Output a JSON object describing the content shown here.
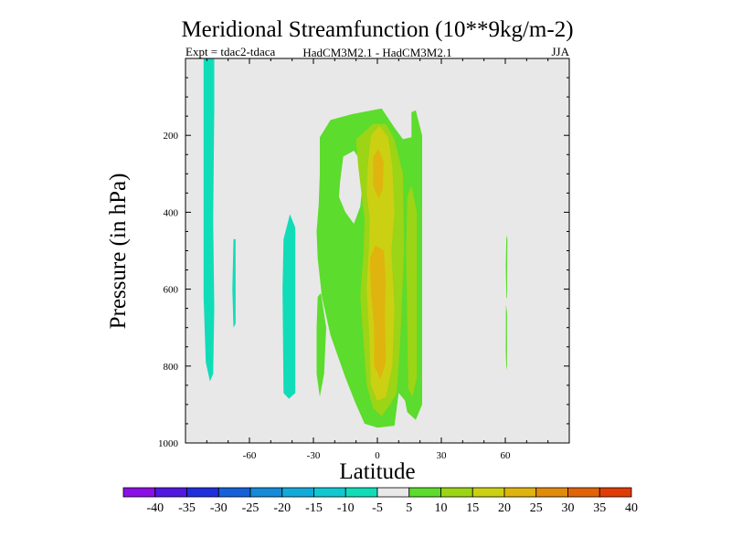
{
  "chart_data": {
    "type": "contour",
    "title": "Meridional Streamfunction (10**9kg/m-2)",
    "experiment_label": "Expt = tdac2-tdaca",
    "model_label": "HadCM3M2.1 - HadCM3M2.1",
    "season_label": "JJA",
    "xlabel": "Latitude",
    "ylabel": "Pressure (in hPa)",
    "xlim": [
      -90,
      90
    ],
    "ylim": [
      0,
      1000
    ],
    "x_ticks": [
      -60,
      -30,
      0,
      30,
      60
    ],
    "x_tick_labels": [
      "-60",
      "-30",
      "0",
      "30",
      "60"
    ],
    "y_ticks": [
      200,
      400,
      600,
      800,
      1000
    ],
    "y_tick_labels": [
      "200",
      "400",
      "600",
      "800",
      "1000"
    ],
    "colorbar": {
      "bin_edges": [
        -40,
        -35,
        -30,
        -25,
        -20,
        -15,
        -10,
        -5,
        5,
        10,
        15,
        20,
        25,
        30,
        35,
        40
      ],
      "labels": [
        "-40",
        "-35",
        "-30",
        "-25",
        "-20",
        "-15",
        "-10",
        "-5",
        "5",
        "10",
        "15",
        "20",
        "25",
        "30",
        "35",
        "40"
      ],
      "colors": [
        "#8a10e6",
        "#5018e0",
        "#1f2fdc",
        "#1660d8",
        "#148ad8",
        "#12aad8",
        "#10c8d2",
        "#10dcb8",
        "#e8e8e8",
        "#5cdc2c",
        "#9cd416",
        "#ccd012",
        "#e0b40e",
        "#e08c0a",
        "#e06406",
        "#e03c06"
      ]
    },
    "background_color": "#e8e8e8",
    "regions": [
      {
        "level": "-10 to -5",
        "color": "#10dcb8",
        "points": [
          [
            -81.5,
            0
          ],
          [
            -76.5,
            0
          ],
          [
            -76.5,
            130
          ],
          [
            -77,
            420
          ],
          [
            -76.5,
            650
          ],
          [
            -77,
            820
          ],
          [
            -78.5,
            840
          ],
          [
            -80.5,
            790
          ],
          [
            -81.5,
            620
          ]
        ]
      },
      {
        "level": "-10 to -5",
        "color": "#10dcb8",
        "points": [
          [
            -67.5,
            470
          ],
          [
            -66.5,
            470
          ],
          [
            -66.5,
            690
          ],
          [
            -67.5,
            700
          ],
          [
            -68,
            600
          ]
        ]
      },
      {
        "level": "-10 to -5",
        "color": "#10dcb8",
        "points": [
          [
            -44,
            470
          ],
          [
            -41,
            405
          ],
          [
            -38.5,
            440
          ],
          [
            -38.5,
            870
          ],
          [
            -41.5,
            885
          ],
          [
            -44,
            870
          ],
          [
            -44.5,
            600
          ]
        ]
      },
      {
        "level": "5 to 10",
        "color": "#5cdc2c",
        "points": [
          [
            -27,
            205
          ],
          [
            -22,
            160
          ],
          [
            -12,
            145
          ],
          [
            2,
            130
          ],
          [
            8,
            180
          ],
          [
            12,
            210
          ],
          [
            16,
            205
          ],
          [
            16,
            140
          ],
          [
            18,
            135
          ],
          [
            21,
            200
          ],
          [
            21,
            900
          ],
          [
            18,
            940
          ],
          [
            14,
            920
          ],
          [
            13,
            890
          ],
          [
            10,
            870
          ],
          [
            8,
            955
          ],
          [
            0,
            960
          ],
          [
            -6,
            950
          ],
          [
            -10,
            900
          ],
          [
            -15,
            830
          ],
          [
            -22,
            720
          ],
          [
            -26,
            620
          ],
          [
            -28,
            520
          ],
          [
            -28.5,
            450
          ],
          [
            -27.5,
            380
          ],
          [
            -27,
            300
          ]
        ]
      },
      {
        "level": "5 to 10",
        "color": "#5cdc2c",
        "points": [
          [
            -28,
            620
          ],
          [
            -26.5,
            610
          ],
          [
            -24,
            700
          ],
          [
            -25,
            820
          ],
          [
            -27,
            880
          ],
          [
            -28.5,
            820
          ],
          [
            -28.5,
            700
          ]
        ]
      },
      {
        "level": "5 to 10",
        "color": "#5cdc2c",
        "points": [
          [
            60.5,
            460
          ],
          [
            61,
            470
          ],
          [
            60.8,
            620
          ],
          [
            60.5,
            625
          ],
          [
            60.2,
            540
          ]
        ]
      },
      {
        "level": "5 to 10",
        "color": "#5cdc2c",
        "points": [
          [
            60.3,
            640
          ],
          [
            60.8,
            660
          ],
          [
            60.8,
            800
          ],
          [
            60.5,
            810
          ],
          [
            60.2,
            760
          ]
        ]
      },
      {
        "level": "-5 to 5",
        "color": "#e8e8e8",
        "points": [
          [
            -15,
            400
          ],
          [
            -18,
            360
          ],
          [
            -17.5,
            320
          ],
          [
            -16,
            255
          ],
          [
            -11,
            240
          ],
          [
            -8,
            265
          ],
          [
            -7,
            330
          ],
          [
            -8,
            385
          ],
          [
            -11,
            430
          ]
        ]
      },
      {
        "level": "10 to 15",
        "color": "#9cd416",
        "points": [
          [
            -10,
            210
          ],
          [
            -2,
            170
          ],
          [
            4,
            170
          ],
          [
            8,
            210
          ],
          [
            12,
            300
          ],
          [
            12.5,
            500
          ],
          [
            11,
            700
          ],
          [
            10,
            800
          ],
          [
            9,
            870
          ],
          [
            6,
            900
          ],
          [
            2,
            930
          ],
          [
            -2,
            910
          ],
          [
            -5,
            850
          ],
          [
            -7,
            700
          ],
          [
            -8,
            620
          ],
          [
            -6.5,
            500
          ],
          [
            -6,
            420
          ],
          [
            -7.5,
            350
          ],
          [
            -9,
            280
          ]
        ]
      },
      {
        "level": "10 to 15",
        "color": "#9cd416",
        "points": [
          [
            14,
            360
          ],
          [
            16,
            330
          ],
          [
            18.5,
            400
          ],
          [
            18.5,
            830
          ],
          [
            16.5,
            880
          ],
          [
            14.5,
            860
          ],
          [
            14,
            700
          ],
          [
            13.5,
            500
          ]
        ]
      },
      {
        "level": "15 to 20",
        "color": "#ccd012",
        "points": [
          [
            -3,
            200
          ],
          [
            1,
            175
          ],
          [
            5,
            205
          ],
          [
            7,
            280
          ],
          [
            8,
            400
          ],
          [
            6.5,
            500
          ],
          [
            8,
            650
          ],
          [
            7,
            800
          ],
          [
            4,
            880
          ],
          [
            0,
            890
          ],
          [
            -3,
            850
          ],
          [
            -4,
            700
          ],
          [
            -5,
            600
          ],
          [
            -4,
            500
          ],
          [
            -3.5,
            420
          ],
          [
            -5,
            350
          ],
          [
            -4.5,
            280
          ]
        ]
      },
      {
        "level": "20 to 25",
        "color": "#e0b40e",
        "points": [
          [
            -2,
            255
          ],
          [
            0.5,
            235
          ],
          [
            3,
            270
          ],
          [
            2.5,
            340
          ],
          [
            0.5,
            365
          ],
          [
            -2,
            330
          ]
        ]
      },
      {
        "level": "20 to 25",
        "color": "#e0b40e",
        "points": [
          [
            -3.5,
            520
          ],
          [
            -1,
            485
          ],
          [
            3,
            500
          ],
          [
            4,
            580
          ],
          [
            3.5,
            660
          ],
          [
            4,
            790
          ],
          [
            1.5,
            835
          ],
          [
            -1.5,
            800
          ],
          [
            -1.5,
            700
          ],
          [
            -3,
            610
          ]
        ]
      }
    ]
  }
}
